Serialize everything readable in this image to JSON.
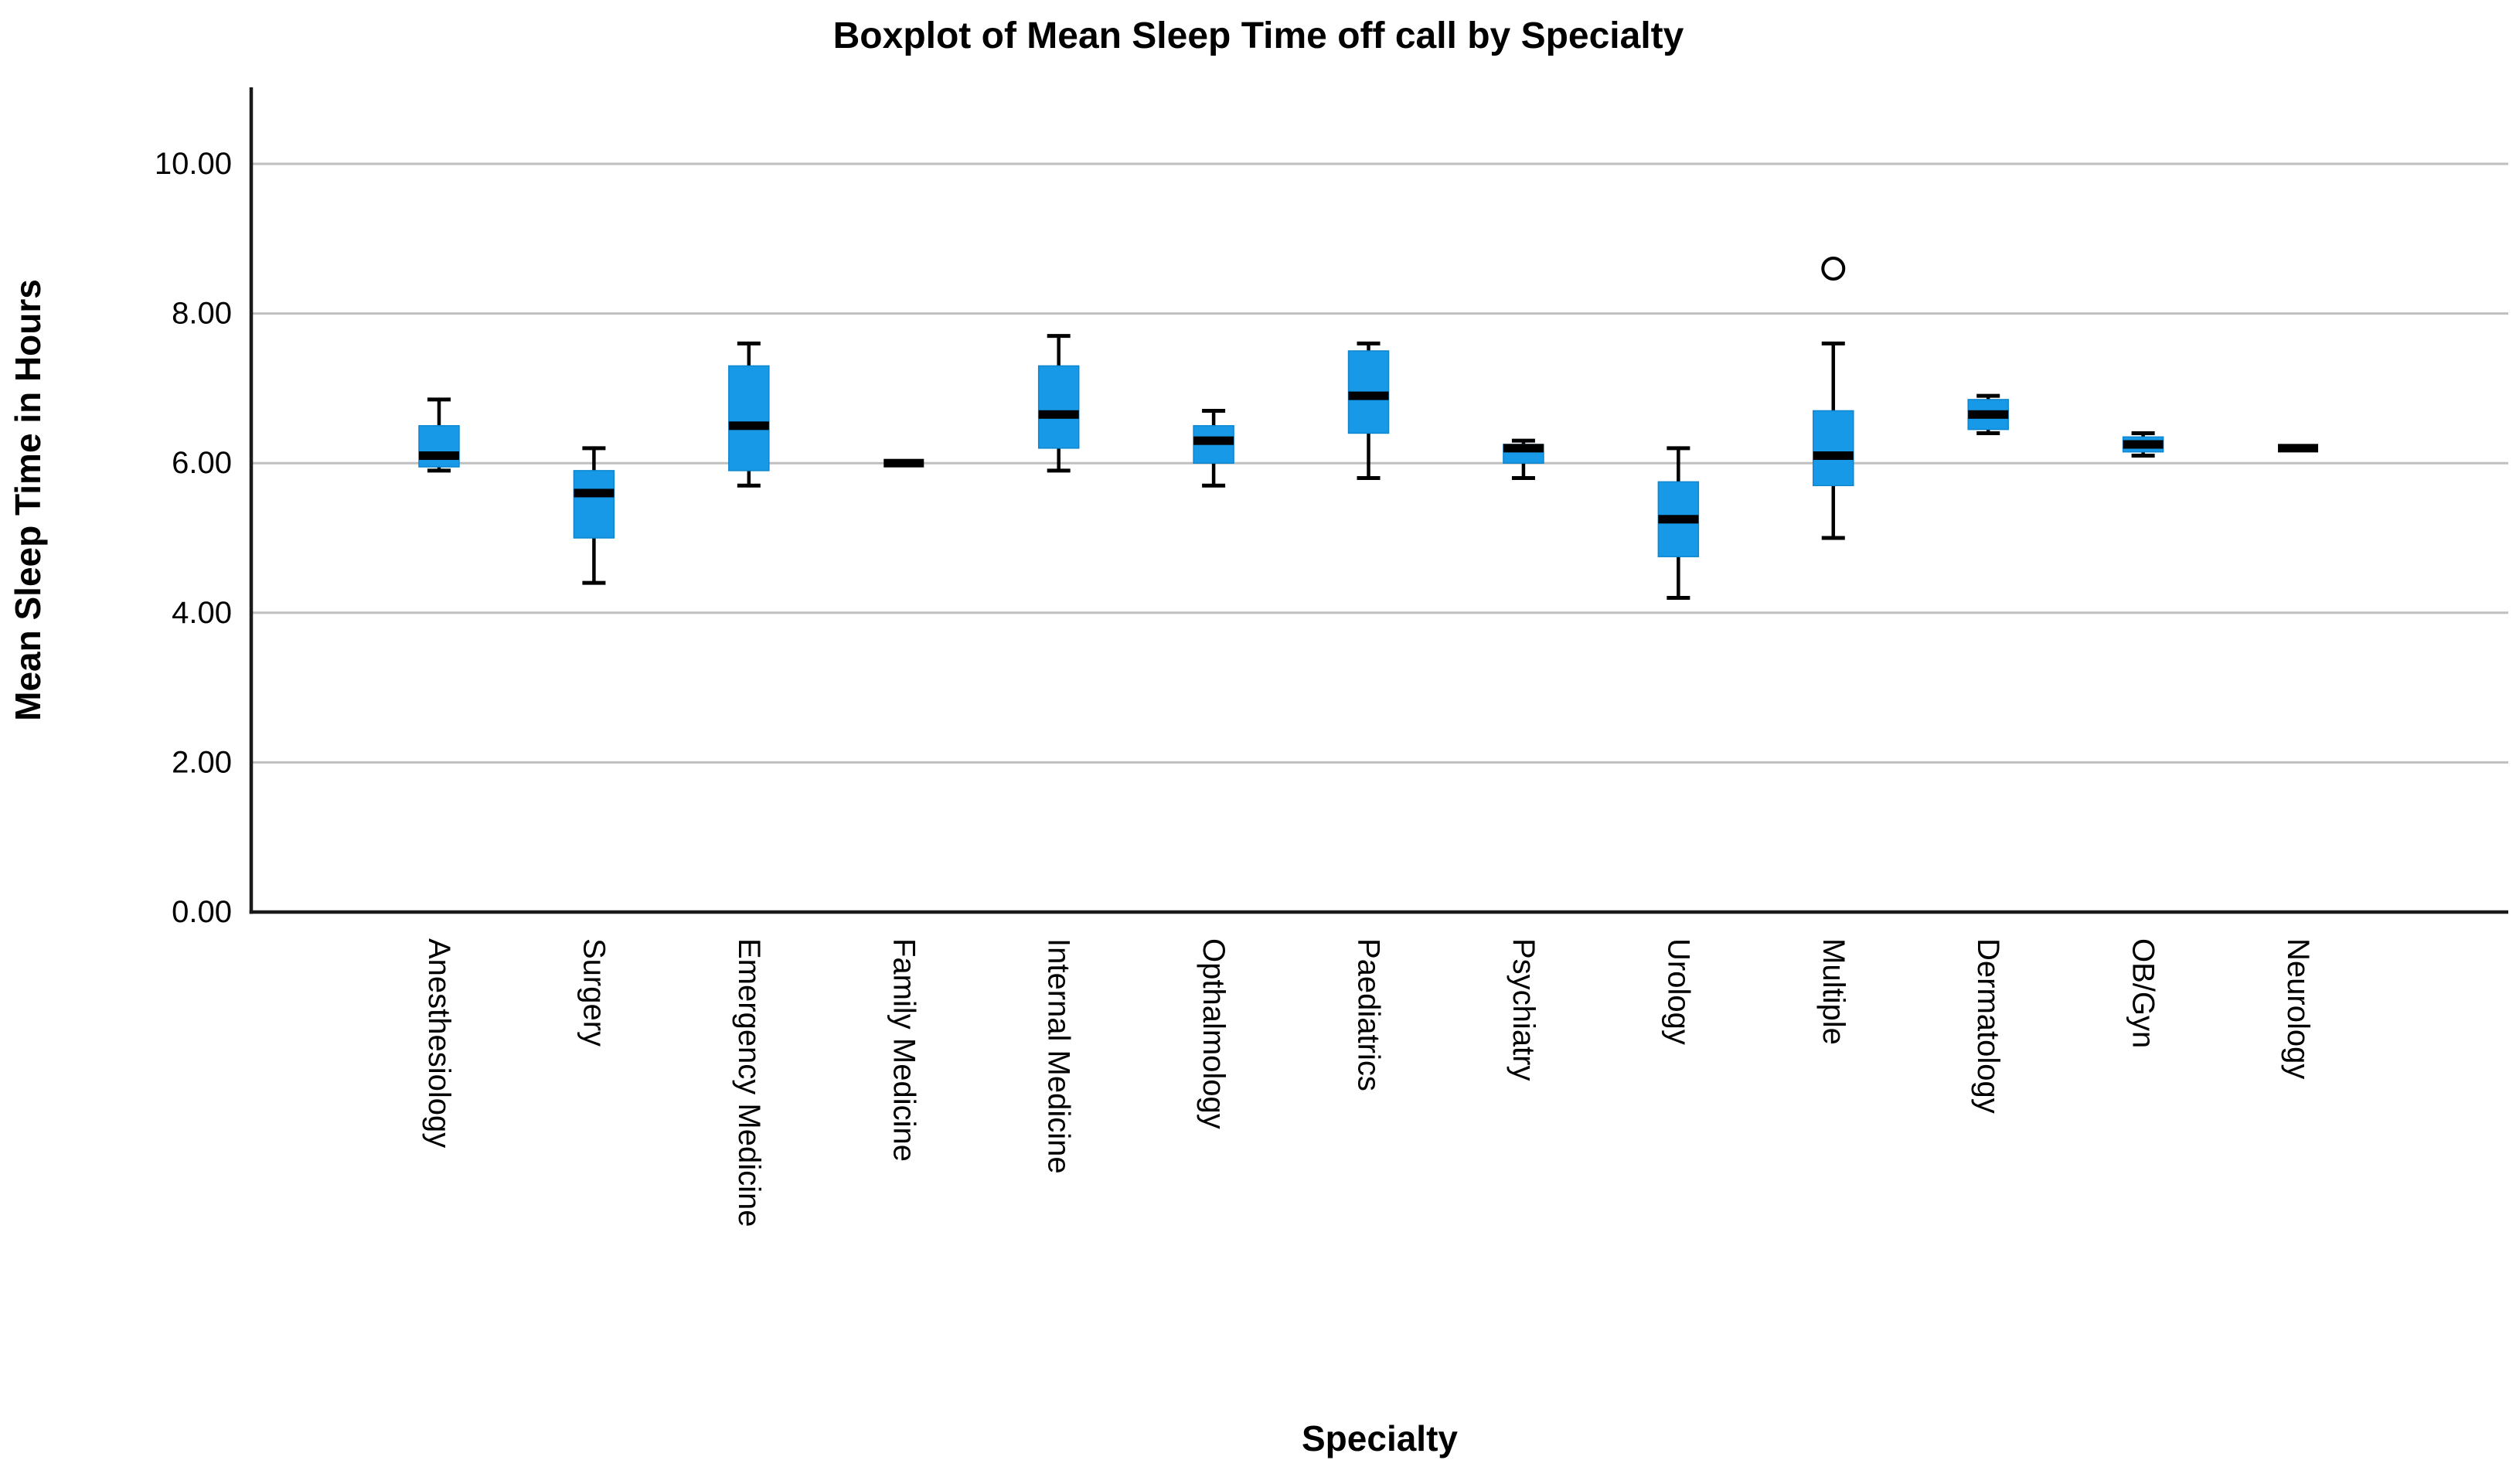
{
  "chart_data": {
    "type": "boxplot",
    "title": "Boxplot of Mean Sleep Time off call by Specialty",
    "xlabel": "Specialty",
    "ylabel": "Mean Sleep Time in Hours",
    "ylim": [
      0,
      11
    ],
    "yticks": [
      0,
      2,
      4,
      6,
      8,
      10
    ],
    "ytick_decimals": 2,
    "grid": "horizontal-only",
    "legend": "none",
    "colors": {
      "box_fill": "#1799E8",
      "box_border": "#0E86CE",
      "median": "#000000",
      "whisker": "#000000",
      "outlier_stroke": "#000000",
      "outlier_fill": "#ffffff",
      "gridline": "#BFBFBF",
      "axis": "#1A1A1A",
      "text": "#000000"
    },
    "categories": [
      "Anesthesiology",
      "Surgery",
      "Emergency Medicine",
      "Family Medicine",
      "Internal Medicine",
      "Opthalmology",
      "Paediatrics",
      "Psychiatry",
      "Urology",
      "Multiple",
      "Dermatology",
      "OB/Gyn",
      "Neurology"
    ],
    "boxes": [
      {
        "category": "Anesthesiology",
        "min": 5.9,
        "q1": 5.95,
        "median": 6.1,
        "q3": 6.5,
        "max": 6.85,
        "outliers": []
      },
      {
        "category": "Surgery",
        "min": 4.4,
        "q1": 5.0,
        "median": 5.6,
        "q3": 5.9,
        "max": 6.2,
        "outliers": []
      },
      {
        "category": "Emergency Medicine",
        "min": 5.7,
        "q1": 5.9,
        "median": 6.5,
        "q3": 7.3,
        "max": 7.6,
        "outliers": []
      },
      {
        "category": "Family Medicine",
        "single": true,
        "value": 6.0,
        "outliers": []
      },
      {
        "category": "Internal Medicine",
        "min": 5.9,
        "q1": 6.2,
        "median": 6.65,
        "q3": 7.3,
        "max": 7.7,
        "outliers": []
      },
      {
        "category": "Opthalmology",
        "min": 5.7,
        "q1": 6.0,
        "median": 6.3,
        "q3": 6.5,
        "max": 6.7,
        "outliers": []
      },
      {
        "category": "Paediatrics",
        "min": 5.8,
        "q1": 6.4,
        "median": 6.9,
        "q3": 7.5,
        "max": 7.6,
        "outliers": []
      },
      {
        "category": "Psychiatry",
        "min": 5.8,
        "q1": 6.0,
        "median": 6.2,
        "q3": 6.25,
        "max": 6.3,
        "outliers": []
      },
      {
        "category": "Urology",
        "min": 4.2,
        "q1": 4.75,
        "median": 5.25,
        "q3": 5.75,
        "max": 6.2,
        "outliers": []
      },
      {
        "category": "Multiple",
        "min": 5.0,
        "q1": 5.7,
        "median": 6.1,
        "q3": 6.7,
        "max": 7.6,
        "outliers": [
          8.6
        ]
      },
      {
        "category": "Dermatology",
        "min": 6.4,
        "q1": 6.45,
        "median": 6.65,
        "q3": 6.85,
        "max": 6.9,
        "outliers": []
      },
      {
        "category": "OB/Gyn",
        "min": 6.1,
        "q1": 6.15,
        "median": 6.25,
        "q3": 6.35,
        "max": 6.4,
        "outliers": []
      },
      {
        "category": "Neurology",
        "single": true,
        "value": 6.2,
        "outliers": []
      }
    ]
  }
}
